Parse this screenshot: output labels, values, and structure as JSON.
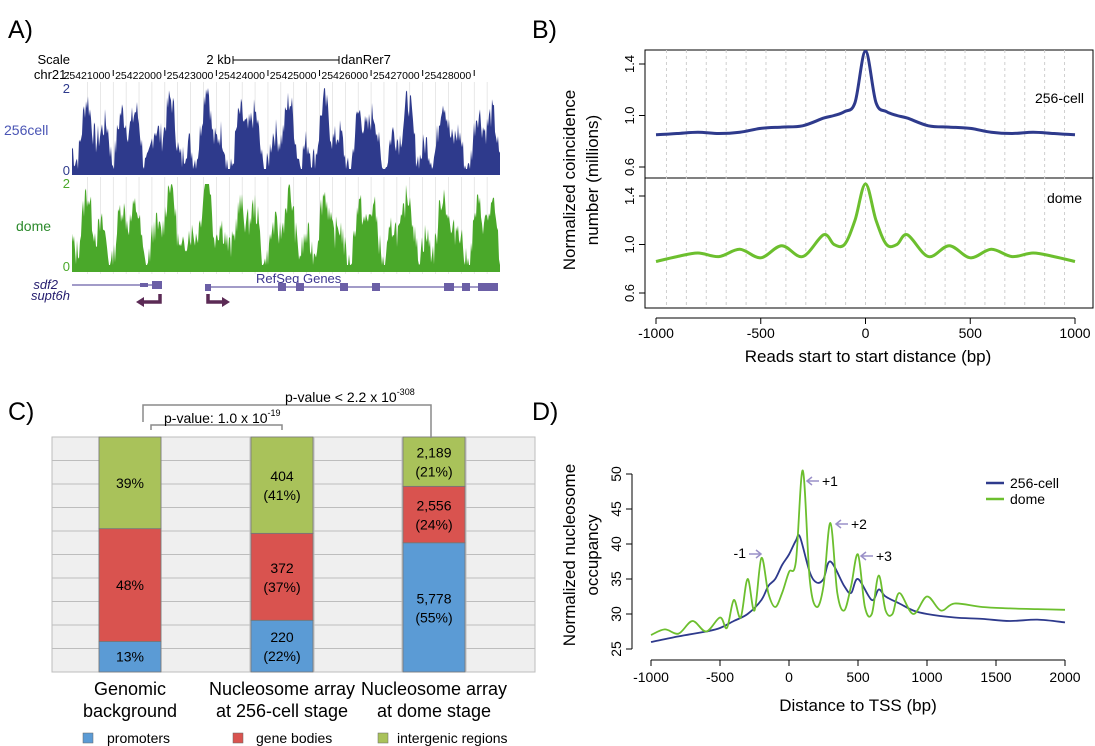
{
  "colors": {
    "blue_256cell": "#2e3a8c",
    "green_dome": "#4aa82a",
    "green_line": "#6cbf2e",
    "gene_purple": "#6b5fa6",
    "arrow_maroon": "#5b2a55",
    "bar_promoters": "#5b9bd5",
    "bar_gene_bodies": "#d9534f",
    "bar_intergenic": "#a9c25a",
    "arrow_label": "#9a90c8"
  },
  "panel_a": {
    "label": "A)",
    "scale_label": "Scale",
    "chr_label": "chr21:",
    "scale_bar": "2 kb",
    "assembly": "danRer7",
    "ticks": [
      "25421000",
      "25422000",
      "25423000",
      "25424000",
      "25425000",
      "25426000",
      "25427000",
      "25428000"
    ],
    "track1": {
      "name": "256cell",
      "ymax": "2",
      "ymin": "0"
    },
    "track2": {
      "name": "dome",
      "ymax": "2",
      "ymin": "0"
    },
    "refseq_label": "RefSeq Genes",
    "genes": [
      "sdf2",
      "supt6h"
    ]
  },
  "panel_b": {
    "label": "B)",
    "ylabel_line1": "Normalized coincidence",
    "ylabel_line2": "number (millions)",
    "xlabel": "Reads start to start distance (bp)",
    "top_series": "256-cell",
    "bottom_series": "dome",
    "yticks": [
      "0.6",
      "1.0",
      "1.4"
    ],
    "xticks": [
      "-1000",
      "-500",
      "0",
      "500",
      "1000"
    ]
  },
  "panel_c": {
    "label": "C)",
    "pvalue_inner": "p-value: 1.0 x 10",
    "pvalue_inner_exp": "-19",
    "pvalue_outer": "p-value < 2.2 x 10",
    "pvalue_outer_exp": "-308",
    "categories": [
      {
        "line1": "Genomic",
        "line2": "background"
      },
      {
        "line1": "Nucleosome array",
        "line2": "at 256-cell stage"
      },
      {
        "line1": "Nucleosome array",
        "line2": "at dome stage"
      }
    ],
    "legend": [
      "promoters",
      "gene bodies",
      "intergenic regions"
    ]
  },
  "panel_d": {
    "label": "D)",
    "ylabel_line1": "Normalized nucleosome",
    "ylabel_line2": "occupancy",
    "xlabel": "Distance to TSS (bp)",
    "yticks": [
      "25",
      "30",
      "35",
      "40",
      "45",
      "50"
    ],
    "xticks": [
      "-1000",
      "-500",
      "0",
      "500",
      "1000",
      "1500",
      "2000"
    ],
    "legend": [
      "256-cell",
      "dome"
    ],
    "peak_labels": [
      "-1",
      "+1",
      "+2",
      "+3"
    ]
  },
  "chart_data": [
    {
      "panel": "A",
      "type": "area",
      "x_range": [
        25420200,
        25428500
      ],
      "tracks": [
        {
          "name": "256cell",
          "ylim": [
            0,
            2
          ],
          "mean_level": 0.55
        },
        {
          "name": "dome",
          "ylim": [
            0,
            2
          ],
          "mean_level": 0.9
        }
      ]
    },
    {
      "panel": "B",
      "type": "line",
      "xlim": [
        -1000,
        1000
      ],
      "ylim": [
        0.6,
        1.5
      ],
      "series": [
        {
          "name": "256-cell",
          "x": [
            -1000,
            -900,
            -800,
            -700,
            -600,
            -500,
            -400,
            -300,
            -200,
            -150,
            -100,
            -50,
            0,
            50,
            100,
            150,
            200,
            300,
            400,
            500,
            600,
            700,
            800,
            900,
            1000
          ],
          "values": [
            0.85,
            0.86,
            0.87,
            0.86,
            0.87,
            0.9,
            0.91,
            0.92,
            0.98,
            1.0,
            1.03,
            1.1,
            1.5,
            1.1,
            1.03,
            1.0,
            0.98,
            0.92,
            0.91,
            0.9,
            0.87,
            0.86,
            0.87,
            0.86,
            0.85
          ]
        },
        {
          "name": "dome",
          "x": [
            -1000,
            -900,
            -800,
            -700,
            -600,
            -500,
            -400,
            -300,
            -200,
            -150,
            -100,
            -50,
            0,
            50,
            100,
            150,
            200,
            300,
            400,
            500,
            600,
            700,
            800,
            900,
            1000
          ],
          "values": [
            0.86,
            0.9,
            0.93,
            0.9,
            0.96,
            0.89,
            0.99,
            0.9,
            1.08,
            1.0,
            1.0,
            1.2,
            1.5,
            1.2,
            1.0,
            1.0,
            1.08,
            0.9,
            0.99,
            0.89,
            0.96,
            0.9,
            0.93,
            0.9,
            0.86
          ]
        }
      ]
    },
    {
      "panel": "C",
      "type": "bar",
      "stacked": true,
      "categories": [
        "Genomic background",
        "Nucleosome array at 256-cell stage",
        "Nucleosome array at dome stage"
      ],
      "series": [
        {
          "name": "promoters",
          "percent": [
            13,
            22,
            55
          ],
          "labels": [
            "13%",
            "220\n(22%)",
            "5,778\n(55%)"
          ]
        },
        {
          "name": "gene bodies",
          "percent": [
            48,
            37,
            24
          ],
          "labels": [
            "48%",
            "372\n(37%)",
            "2,556\n(24%)"
          ]
        },
        {
          "name": "intergenic regions",
          "percent": [
            39,
            41,
            21
          ],
          "labels": [
            "39%",
            "404\n(41%)",
            "2,189\n(21%)"
          ]
        }
      ]
    },
    {
      "panel": "D",
      "type": "line",
      "xlim": [
        -1000,
        2000
      ],
      "ylim": [
        25,
        51
      ],
      "series": [
        {
          "name": "256-cell",
          "x": [
            -1000,
            -800,
            -600,
            -500,
            -400,
            -300,
            -200,
            -150,
            -100,
            -50,
            0,
            50,
            80,
            150,
            200,
            250,
            300,
            400,
            450,
            500,
            600,
            650,
            700,
            800,
            900,
            1000,
            1200,
            1400,
            1600,
            1800,
            2000
          ],
          "values": [
            26,
            26.8,
            27.5,
            28,
            29,
            30,
            32,
            34,
            35,
            37,
            38.5,
            40.5,
            41,
            36,
            34.5,
            35,
            37.5,
            34,
            33,
            35,
            32,
            33.5,
            32.5,
            31.5,
            30.5,
            30,
            29.5,
            29.3,
            29,
            29.2,
            28.8
          ]
        },
        {
          "name": "dome",
          "x": [
            -1000,
            -900,
            -800,
            -700,
            -600,
            -500,
            -450,
            -400,
            -350,
            -300,
            -250,
            -200,
            -150,
            -100,
            -50,
            0,
            50,
            100,
            150,
            200,
            250,
            300,
            350,
            400,
            450,
            500,
            550,
            600,
            650,
            700,
            750,
            800,
            900,
            1000,
            1100,
            1200,
            1400,
            1600,
            1800,
            2000
          ],
          "values": [
            27,
            27.8,
            27.2,
            29,
            27.5,
            29.5,
            28,
            32,
            29.5,
            35,
            30.5,
            38,
            33,
            31,
            33,
            36,
            37.5,
            50.5,
            35,
            31,
            34,
            43,
            33,
            30.5,
            34,
            38.5,
            31,
            30,
            35.5,
            30.5,
            30,
            33,
            30,
            32.5,
            30.5,
            31.5,
            31,
            30.8,
            30.7,
            30.6
          ]
        }
      ]
    }
  ]
}
